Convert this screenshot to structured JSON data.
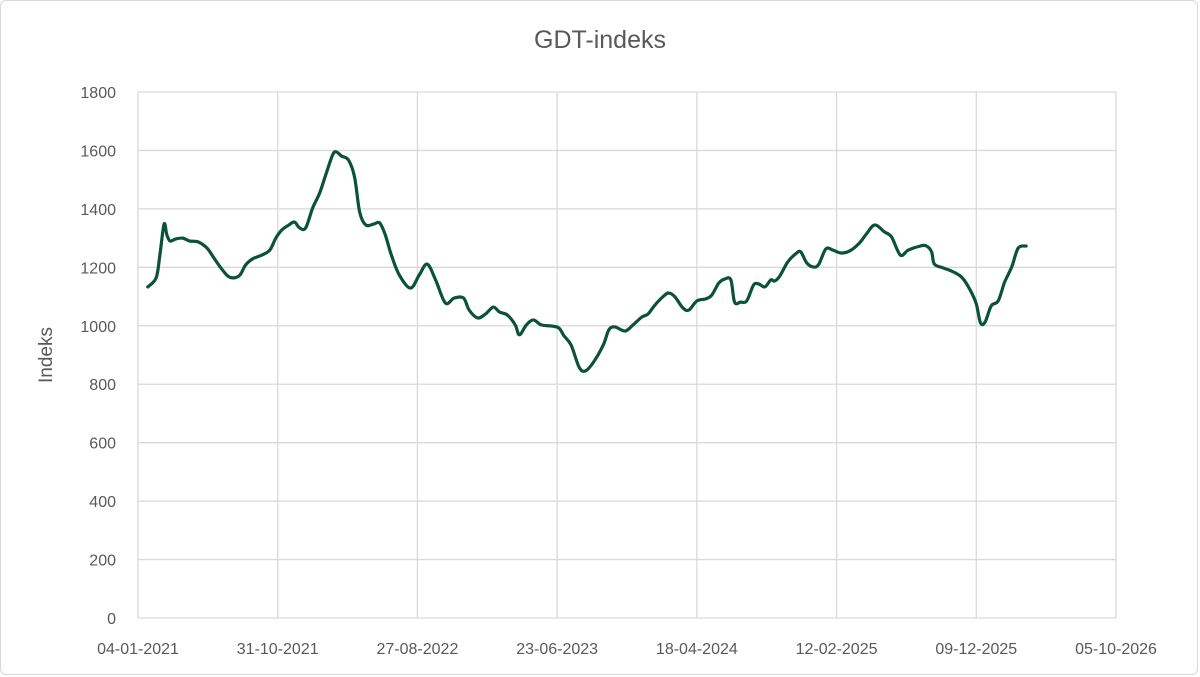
{
  "chart_data": {
    "type": "line",
    "title": "GDT-indeks",
    "xlabel": "",
    "ylabel": "Indeks",
    "ylim": [
      0,
      1800
    ],
    "yticks": [
      0,
      200,
      400,
      600,
      800,
      1000,
      1200,
      1400,
      1600,
      1800
    ],
    "xlim": [
      "2021-01-04",
      "2026-10-05"
    ],
    "xtick_labels": [
      "04-01-2021",
      "31-10-2021",
      "27-08-2022",
      "23-06-2023",
      "18-04-2024",
      "12-02-2025",
      "09-12-2025",
      "05-10-2026"
    ],
    "grid": true,
    "legend": "none",
    "line_color": "#0b5239",
    "series": [
      {
        "points": [
          [
            "2021-01-25",
            1133
          ],
          [
            "2021-02-12",
            1164
          ],
          [
            "2021-02-20",
            1242
          ],
          [
            "2021-03-01",
            1348
          ],
          [
            "2021-03-07",
            1311
          ],
          [
            "2021-03-14",
            1290
          ],
          [
            "2021-03-26",
            1297
          ],
          [
            "2021-04-10",
            1300
          ],
          [
            "2021-04-25",
            1290
          ],
          [
            "2021-05-13",
            1287
          ],
          [
            "2021-06-01",
            1266
          ],
          [
            "2021-06-16",
            1232
          ],
          [
            "2021-07-01",
            1198
          ],
          [
            "2021-07-16",
            1170
          ],
          [
            "2021-07-29",
            1164
          ],
          [
            "2021-08-11",
            1174
          ],
          [
            "2021-08-23",
            1208
          ],
          [
            "2021-09-07",
            1229
          ],
          [
            "2021-09-27",
            1242
          ],
          [
            "2021-10-14",
            1259
          ],
          [
            "2021-10-27",
            1300
          ],
          [
            "2021-11-09",
            1328
          ],
          [
            "2021-11-24",
            1345
          ],
          [
            "2021-12-06",
            1355
          ],
          [
            "2021-12-17",
            1335
          ],
          [
            "2021-12-30",
            1335
          ],
          [
            "2022-01-14",
            1403
          ],
          [
            "2022-01-29",
            1454
          ],
          [
            "2022-02-11",
            1516
          ],
          [
            "2022-02-26",
            1585
          ],
          [
            "2022-03-06",
            1595
          ],
          [
            "2022-03-17",
            1581
          ],
          [
            "2022-04-01",
            1567
          ],
          [
            "2022-04-14",
            1509
          ],
          [
            "2022-04-25",
            1389
          ],
          [
            "2022-05-08",
            1345
          ],
          [
            "2022-05-25",
            1348
          ],
          [
            "2022-06-07",
            1352
          ],
          [
            "2022-06-19",
            1311
          ],
          [
            "2022-07-02",
            1242
          ],
          [
            "2022-07-19",
            1174
          ],
          [
            "2022-08-12",
            1129
          ],
          [
            "2022-08-31",
            1174
          ],
          [
            "2022-09-17",
            1211
          ],
          [
            "2022-10-05",
            1157
          ],
          [
            "2022-10-26",
            1078
          ],
          [
            "2022-11-14",
            1095
          ],
          [
            "2022-12-04",
            1095
          ],
          [
            "2022-12-16",
            1054
          ],
          [
            "2023-01-03",
            1027
          ],
          [
            "2023-01-20",
            1040
          ],
          [
            "2023-02-06",
            1064
          ],
          [
            "2023-02-19",
            1047
          ],
          [
            "2023-03-08",
            1037
          ],
          [
            "2023-03-25",
            1003
          ],
          [
            "2023-04-03",
            969
          ],
          [
            "2023-04-18",
            1003
          ],
          [
            "2023-05-03",
            1020
          ],
          [
            "2023-05-20",
            1003
          ],
          [
            "2023-06-12",
            999
          ],
          [
            "2023-06-27",
            992
          ],
          [
            "2023-07-08",
            965
          ],
          [
            "2023-07-23",
            934
          ],
          [
            "2023-08-09",
            859
          ],
          [
            "2023-08-22",
            845
          ],
          [
            "2023-09-08",
            873
          ],
          [
            "2023-09-30",
            934
          ],
          [
            "2023-10-12",
            986
          ],
          [
            "2023-10-25",
            996
          ],
          [
            "2023-11-16",
            982
          ],
          [
            "2023-12-03",
            1003
          ],
          [
            "2023-12-22",
            1030
          ],
          [
            "2024-01-04",
            1040
          ],
          [
            "2024-01-19",
            1071
          ],
          [
            "2024-02-07",
            1102
          ],
          [
            "2024-02-18",
            1112
          ],
          [
            "2024-03-02",
            1099
          ],
          [
            "2024-03-19",
            1061
          ],
          [
            "2024-04-01",
            1054
          ],
          [
            "2024-04-18",
            1085
          ],
          [
            "2024-05-07",
            1092
          ],
          [
            "2024-05-20",
            1105
          ],
          [
            "2024-06-04",
            1146
          ],
          [
            "2024-06-17",
            1160
          ],
          [
            "2024-06-30",
            1157
          ],
          [
            "2024-07-08",
            1081
          ],
          [
            "2024-07-21",
            1081
          ],
          [
            "2024-08-03",
            1085
          ],
          [
            "2024-08-18",
            1140
          ],
          [
            "2024-08-29",
            1143
          ],
          [
            "2024-09-11",
            1133
          ],
          [
            "2024-09-24",
            1157
          ],
          [
            "2024-10-02",
            1153
          ],
          [
            "2024-10-13",
            1170
          ],
          [
            "2024-10-30",
            1218
          ],
          [
            "2024-11-16",
            1246
          ],
          [
            "2024-11-27",
            1253
          ],
          [
            "2024-12-10",
            1215
          ],
          [
            "2024-12-25",
            1201
          ],
          [
            "2025-01-05",
            1211
          ],
          [
            "2025-01-20",
            1263
          ],
          [
            "2025-02-04",
            1259
          ],
          [
            "2025-02-21",
            1249
          ],
          [
            "2025-03-12",
            1256
          ],
          [
            "2025-04-02",
            1283
          ],
          [
            "2025-04-17",
            1314
          ],
          [
            "2025-05-05",
            1345
          ],
          [
            "2025-05-26",
            1321
          ],
          [
            "2025-06-10",
            1304
          ],
          [
            "2025-06-29",
            1242
          ],
          [
            "2025-07-16",
            1259
          ],
          [
            "2025-08-11",
            1273
          ],
          [
            "2025-08-24",
            1273
          ],
          [
            "2025-09-04",
            1253
          ],
          [
            "2025-09-10",
            1211
          ],
          [
            "2025-09-29",
            1198
          ],
          [
            "2025-10-21",
            1184
          ],
          [
            "2025-11-09",
            1164
          ],
          [
            "2025-11-26",
            1122
          ],
          [
            "2025-12-09",
            1075
          ],
          [
            "2025-12-18",
            1010
          ],
          [
            "2025-12-28",
            1013
          ],
          [
            "2026-01-10",
            1068
          ],
          [
            "2026-01-25",
            1085
          ],
          [
            "2026-02-07",
            1146
          ],
          [
            "2026-02-16",
            1177
          ],
          [
            "2026-02-24",
            1205
          ],
          [
            "2026-03-09",
            1266
          ],
          [
            "2026-03-26",
            1273
          ]
        ]
      }
    ]
  }
}
